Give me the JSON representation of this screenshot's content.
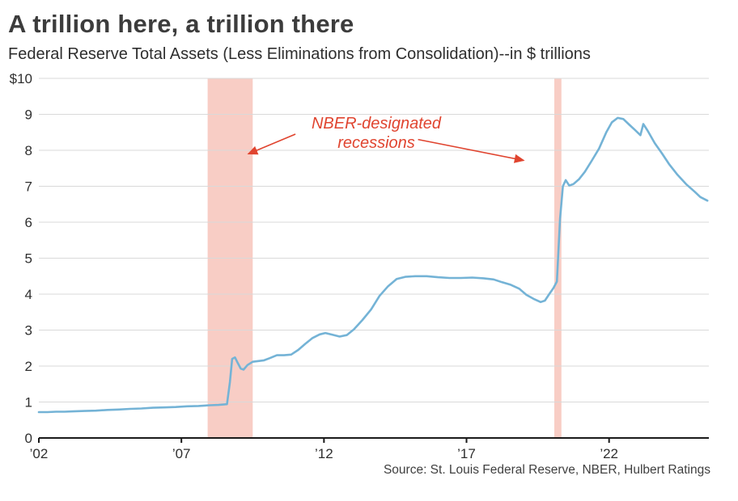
{
  "page": {
    "title": "A trillion here, a trillion there",
    "subtitle": "Federal Reserve Total Assets (Less Eliminations from Consolidation)--in $ trillions",
    "source": "Source: St. Louis Federal Reserve, NBER, Hulbert Ratings"
  },
  "colors": {
    "line": "#74b3d6",
    "band": "#f8cdc5",
    "annotation": "#e0442f",
    "grid": "#d9d9d9",
    "axis": "#1a1a1a",
    "tick_text": "#2f2f2f"
  },
  "chart_data": {
    "type": "line",
    "title": "A trillion here, a trillion there",
    "subtitle": "Federal Reserve Total Assets (Less Eliminations from Consolidation)--in $ trillions",
    "xlabel": "",
    "ylabel": "$ trillions",
    "xlim": [
      2002,
      2025.5
    ],
    "ylim": [
      0,
      10
    ],
    "grid": "horizontal",
    "legend": "none",
    "y_ticks": [
      {
        "v": 10,
        "label": "$10"
      },
      {
        "v": 9,
        "label": "9"
      },
      {
        "v": 8,
        "label": "8"
      },
      {
        "v": 7,
        "label": "7"
      },
      {
        "v": 6,
        "label": "6"
      },
      {
        "v": 5,
        "label": "5"
      },
      {
        "v": 4,
        "label": "4"
      },
      {
        "v": 3,
        "label": "3"
      },
      {
        "v": 2,
        "label": "2"
      },
      {
        "v": 1,
        "label": "1"
      },
      {
        "v": 0,
        "label": "0"
      }
    ],
    "x_ticks": [
      {
        "v": 2002,
        "label": "’02"
      },
      {
        "v": 2007,
        "label": "’07"
      },
      {
        "v": 2012,
        "label": "’12"
      },
      {
        "v": 2017,
        "label": "’17"
      },
      {
        "v": 2022,
        "label": "’22"
      }
    ],
    "recession_bands": [
      {
        "x0": 2007.92,
        "x1": 2009.5
      },
      {
        "x0": 2020.08,
        "x1": 2020.33
      }
    ],
    "annotation": {
      "text": "NBER-designated recessions",
      "arrows": [
        {
          "from": [
            2011.0,
            8.45
          ],
          "to": [
            2009.35,
            7.9
          ]
        },
        {
          "from": [
            2015.3,
            8.3
          ],
          "to": [
            2019.0,
            7.72
          ]
        }
      ]
    },
    "series": [
      {
        "name": "Federal Reserve Total Assets ($ trillions)",
        "points": [
          [
            2002.0,
            0.72
          ],
          [
            2002.3,
            0.72
          ],
          [
            2002.6,
            0.73
          ],
          [
            2002.9,
            0.73
          ],
          [
            2003.2,
            0.74
          ],
          [
            2003.6,
            0.75
          ],
          [
            2004.0,
            0.76
          ],
          [
            2004.4,
            0.78
          ],
          [
            2004.8,
            0.79
          ],
          [
            2005.2,
            0.81
          ],
          [
            2005.6,
            0.82
          ],
          [
            2006.0,
            0.84
          ],
          [
            2006.4,
            0.85
          ],
          [
            2006.8,
            0.86
          ],
          [
            2007.2,
            0.88
          ],
          [
            2007.6,
            0.89
          ],
          [
            2008.0,
            0.91
          ],
          [
            2008.3,
            0.92
          ],
          [
            2008.6,
            0.94
          ],
          [
            2008.7,
            1.55
          ],
          [
            2008.78,
            2.2
          ],
          [
            2008.88,
            2.24
          ],
          [
            2008.98,
            2.08
          ],
          [
            2009.08,
            1.93
          ],
          [
            2009.18,
            1.9
          ],
          [
            2009.32,
            2.03
          ],
          [
            2009.5,
            2.12
          ],
          [
            2009.7,
            2.14
          ],
          [
            2009.9,
            2.16
          ],
          [
            2010.1,
            2.22
          ],
          [
            2010.35,
            2.3
          ],
          [
            2010.6,
            2.3
          ],
          [
            2010.85,
            2.32
          ],
          [
            2011.1,
            2.45
          ],
          [
            2011.35,
            2.62
          ],
          [
            2011.6,
            2.78
          ],
          [
            2011.85,
            2.88
          ],
          [
            2012.05,
            2.92
          ],
          [
            2012.3,
            2.87
          ],
          [
            2012.55,
            2.82
          ],
          [
            2012.8,
            2.86
          ],
          [
            2013.05,
            3.02
          ],
          [
            2013.35,
            3.28
          ],
          [
            2013.65,
            3.57
          ],
          [
            2013.95,
            3.95
          ],
          [
            2014.25,
            4.22
          ],
          [
            2014.55,
            4.42
          ],
          [
            2014.85,
            4.48
          ],
          [
            2015.2,
            4.5
          ],
          [
            2015.6,
            4.5
          ],
          [
            2016.0,
            4.47
          ],
          [
            2016.4,
            4.45
          ],
          [
            2016.8,
            4.45
          ],
          [
            2017.2,
            4.46
          ],
          [
            2017.6,
            4.44
          ],
          [
            2017.95,
            4.41
          ],
          [
            2018.25,
            4.33
          ],
          [
            2018.55,
            4.26
          ],
          [
            2018.85,
            4.15
          ],
          [
            2019.1,
            3.98
          ],
          [
            2019.35,
            3.87
          ],
          [
            2019.6,
            3.78
          ],
          [
            2019.75,
            3.82
          ],
          [
            2019.9,
            4.0
          ],
          [
            2020.05,
            4.17
          ],
          [
            2020.17,
            4.35
          ],
          [
            2020.28,
            6.1
          ],
          [
            2020.38,
            7.0
          ],
          [
            2020.48,
            7.17
          ],
          [
            2020.6,
            7.02
          ],
          [
            2020.75,
            7.06
          ],
          [
            2020.95,
            7.2
          ],
          [
            2021.15,
            7.4
          ],
          [
            2021.4,
            7.72
          ],
          [
            2021.65,
            8.05
          ],
          [
            2021.9,
            8.5
          ],
          [
            2022.1,
            8.78
          ],
          [
            2022.3,
            8.9
          ],
          [
            2022.5,
            8.87
          ],
          [
            2022.7,
            8.72
          ],
          [
            2022.9,
            8.57
          ],
          [
            2023.1,
            8.42
          ],
          [
            2023.2,
            8.73
          ],
          [
            2023.35,
            8.55
          ],
          [
            2023.6,
            8.2
          ],
          [
            2023.85,
            7.92
          ],
          [
            2024.1,
            7.62
          ],
          [
            2024.4,
            7.32
          ],
          [
            2024.7,
            7.06
          ],
          [
            2025.0,
            6.85
          ],
          [
            2025.2,
            6.7
          ],
          [
            2025.45,
            6.6
          ]
        ]
      }
    ]
  }
}
